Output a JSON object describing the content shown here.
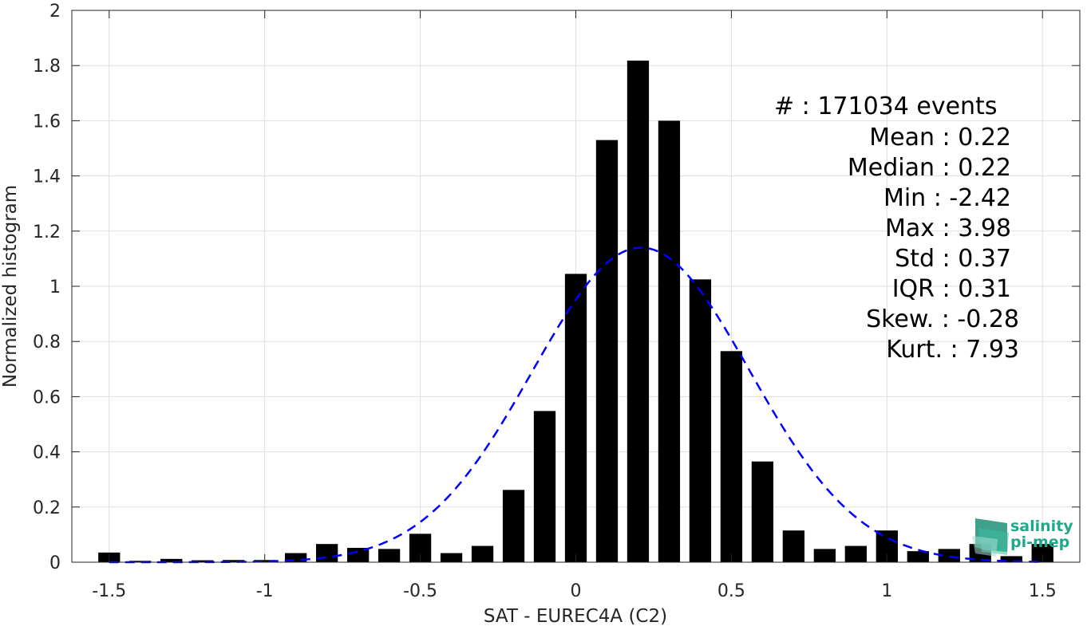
{
  "chart_data": {
    "type": "bar",
    "xlabel": "SAT - EUREC4A (C2)",
    "ylabel": "Normalized histogram",
    "xlim": [
      -1.62,
      1.62
    ],
    "ylim": [
      0,
      2
    ],
    "xticks": [
      -1.5,
      -1,
      -0.5,
      0,
      0.5,
      1,
      1.5
    ],
    "xtick_labels": [
      "-1.5",
      "-1",
      "-0.5",
      "0",
      "0.5",
      "1",
      "1.5"
    ],
    "yticks": [
      0,
      0.2,
      0.4,
      0.6,
      0.8,
      1,
      1.2,
      1.4,
      1.6,
      1.8,
      2
    ],
    "ytick_labels": [
      "0",
      "0.2",
      "0.4",
      "0.6",
      "0.8",
      "1",
      "1.2",
      "1.4",
      "1.6",
      "1.8",
      "2"
    ],
    "grid": true,
    "bar_width": 0.07,
    "bar_color": "#000000",
    "bins": [
      {
        "x": -1.5,
        "y": 0.035
      },
      {
        "x": -1.4,
        "y": 0.005
      },
      {
        "x": -1.3,
        "y": 0.012
      },
      {
        "x": -1.2,
        "y": 0.007
      },
      {
        "x": -1.1,
        "y": 0.008
      },
      {
        "x": -1.0,
        "y": 0.008
      },
      {
        "x": -0.9,
        "y": 0.033
      },
      {
        "x": -0.8,
        "y": 0.066
      },
      {
        "x": -0.7,
        "y": 0.052
      },
      {
        "x": -0.6,
        "y": 0.048
      },
      {
        "x": -0.5,
        "y": 0.103
      },
      {
        "x": -0.4,
        "y": 0.033
      },
      {
        "x": -0.3,
        "y": 0.059
      },
      {
        "x": -0.2,
        "y": 0.262
      },
      {
        "x": -0.1,
        "y": 0.548
      },
      {
        "x": 0.0,
        "y": 1.045
      },
      {
        "x": 0.1,
        "y": 1.53
      },
      {
        "x": 0.2,
        "y": 1.818
      },
      {
        "x": 0.3,
        "y": 1.6
      },
      {
        "x": 0.4,
        "y": 1.025
      },
      {
        "x": 0.5,
        "y": 0.765
      },
      {
        "x": 0.6,
        "y": 0.365
      },
      {
        "x": 0.7,
        "y": 0.115
      },
      {
        "x": 0.8,
        "y": 0.048
      },
      {
        "x": 0.9,
        "y": 0.059
      },
      {
        "x": 1.0,
        "y": 0.115
      },
      {
        "x": 1.1,
        "y": 0.04
      },
      {
        "x": 1.2,
        "y": 0.048
      },
      {
        "x": 1.3,
        "y": 0.066
      },
      {
        "x": 1.4,
        "y": 0.022
      },
      {
        "x": 1.5,
        "y": 0.066
      }
    ],
    "fit_curve": {
      "style": "dashed",
      "color": "#0000ff",
      "mean": 0.21,
      "std": 0.35,
      "peak": 1.14
    },
    "annotations": [
      "#  : 171034 events",
      "Mean : 0.22",
      "Median : 0.22",
      "Min : -2.42",
      "Max : 3.98",
      "Std : 0.37",
      "IQR : 0.31",
      "Skew. : -0.28",
      "Kurt. : 7.93"
    ]
  },
  "logo": {
    "line1": "salinity",
    "line2": "pi-mep",
    "color": "#20a88c"
  }
}
